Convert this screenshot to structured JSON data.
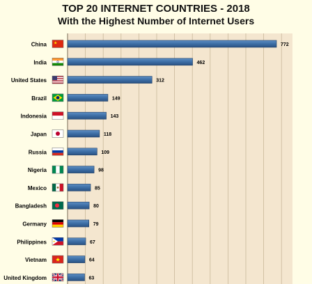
{
  "chart_data": {
    "type": "bar",
    "orientation": "horizontal",
    "title": "TOP 20 INTERNET COUNTRIES - 2018",
    "subtitle": "With the Highest Number of Internet Users",
    "categories": [
      "China",
      "India",
      "United States",
      "Brazil",
      "Indonesia",
      "Japan",
      "Russia",
      "Nigeria",
      "Mexico",
      "Bangladesh",
      "Germany",
      "Philippines",
      "Vietnam",
      "United Kingdom"
    ],
    "values": [
      772,
      462,
      312,
      149,
      143,
      118,
      109,
      98,
      85,
      80,
      79,
      67,
      64,
      63
    ],
    "flag_icons": [
      "flag-china-icon",
      "flag-india-icon",
      "flag-usa-icon",
      "flag-brazil-icon",
      "flag-indonesia-icon",
      "flag-japan-icon",
      "flag-russia-icon",
      "flag-nigeria-icon",
      "flag-mexico-icon",
      "flag-bangladesh-icon",
      "flag-germany-icon",
      "flag-philippines-icon",
      "flag-vietnam-icon",
      "flag-uk-icon"
    ],
    "xlim": [
      0,
      800
    ],
    "grid": true,
    "colors": {
      "bar": "#3d6ea5",
      "bar_edge": "#1f3e66",
      "plot_bg": "#f4e6cf",
      "page_bg": "#fffde6",
      "grid": "#c8b89a"
    }
  }
}
